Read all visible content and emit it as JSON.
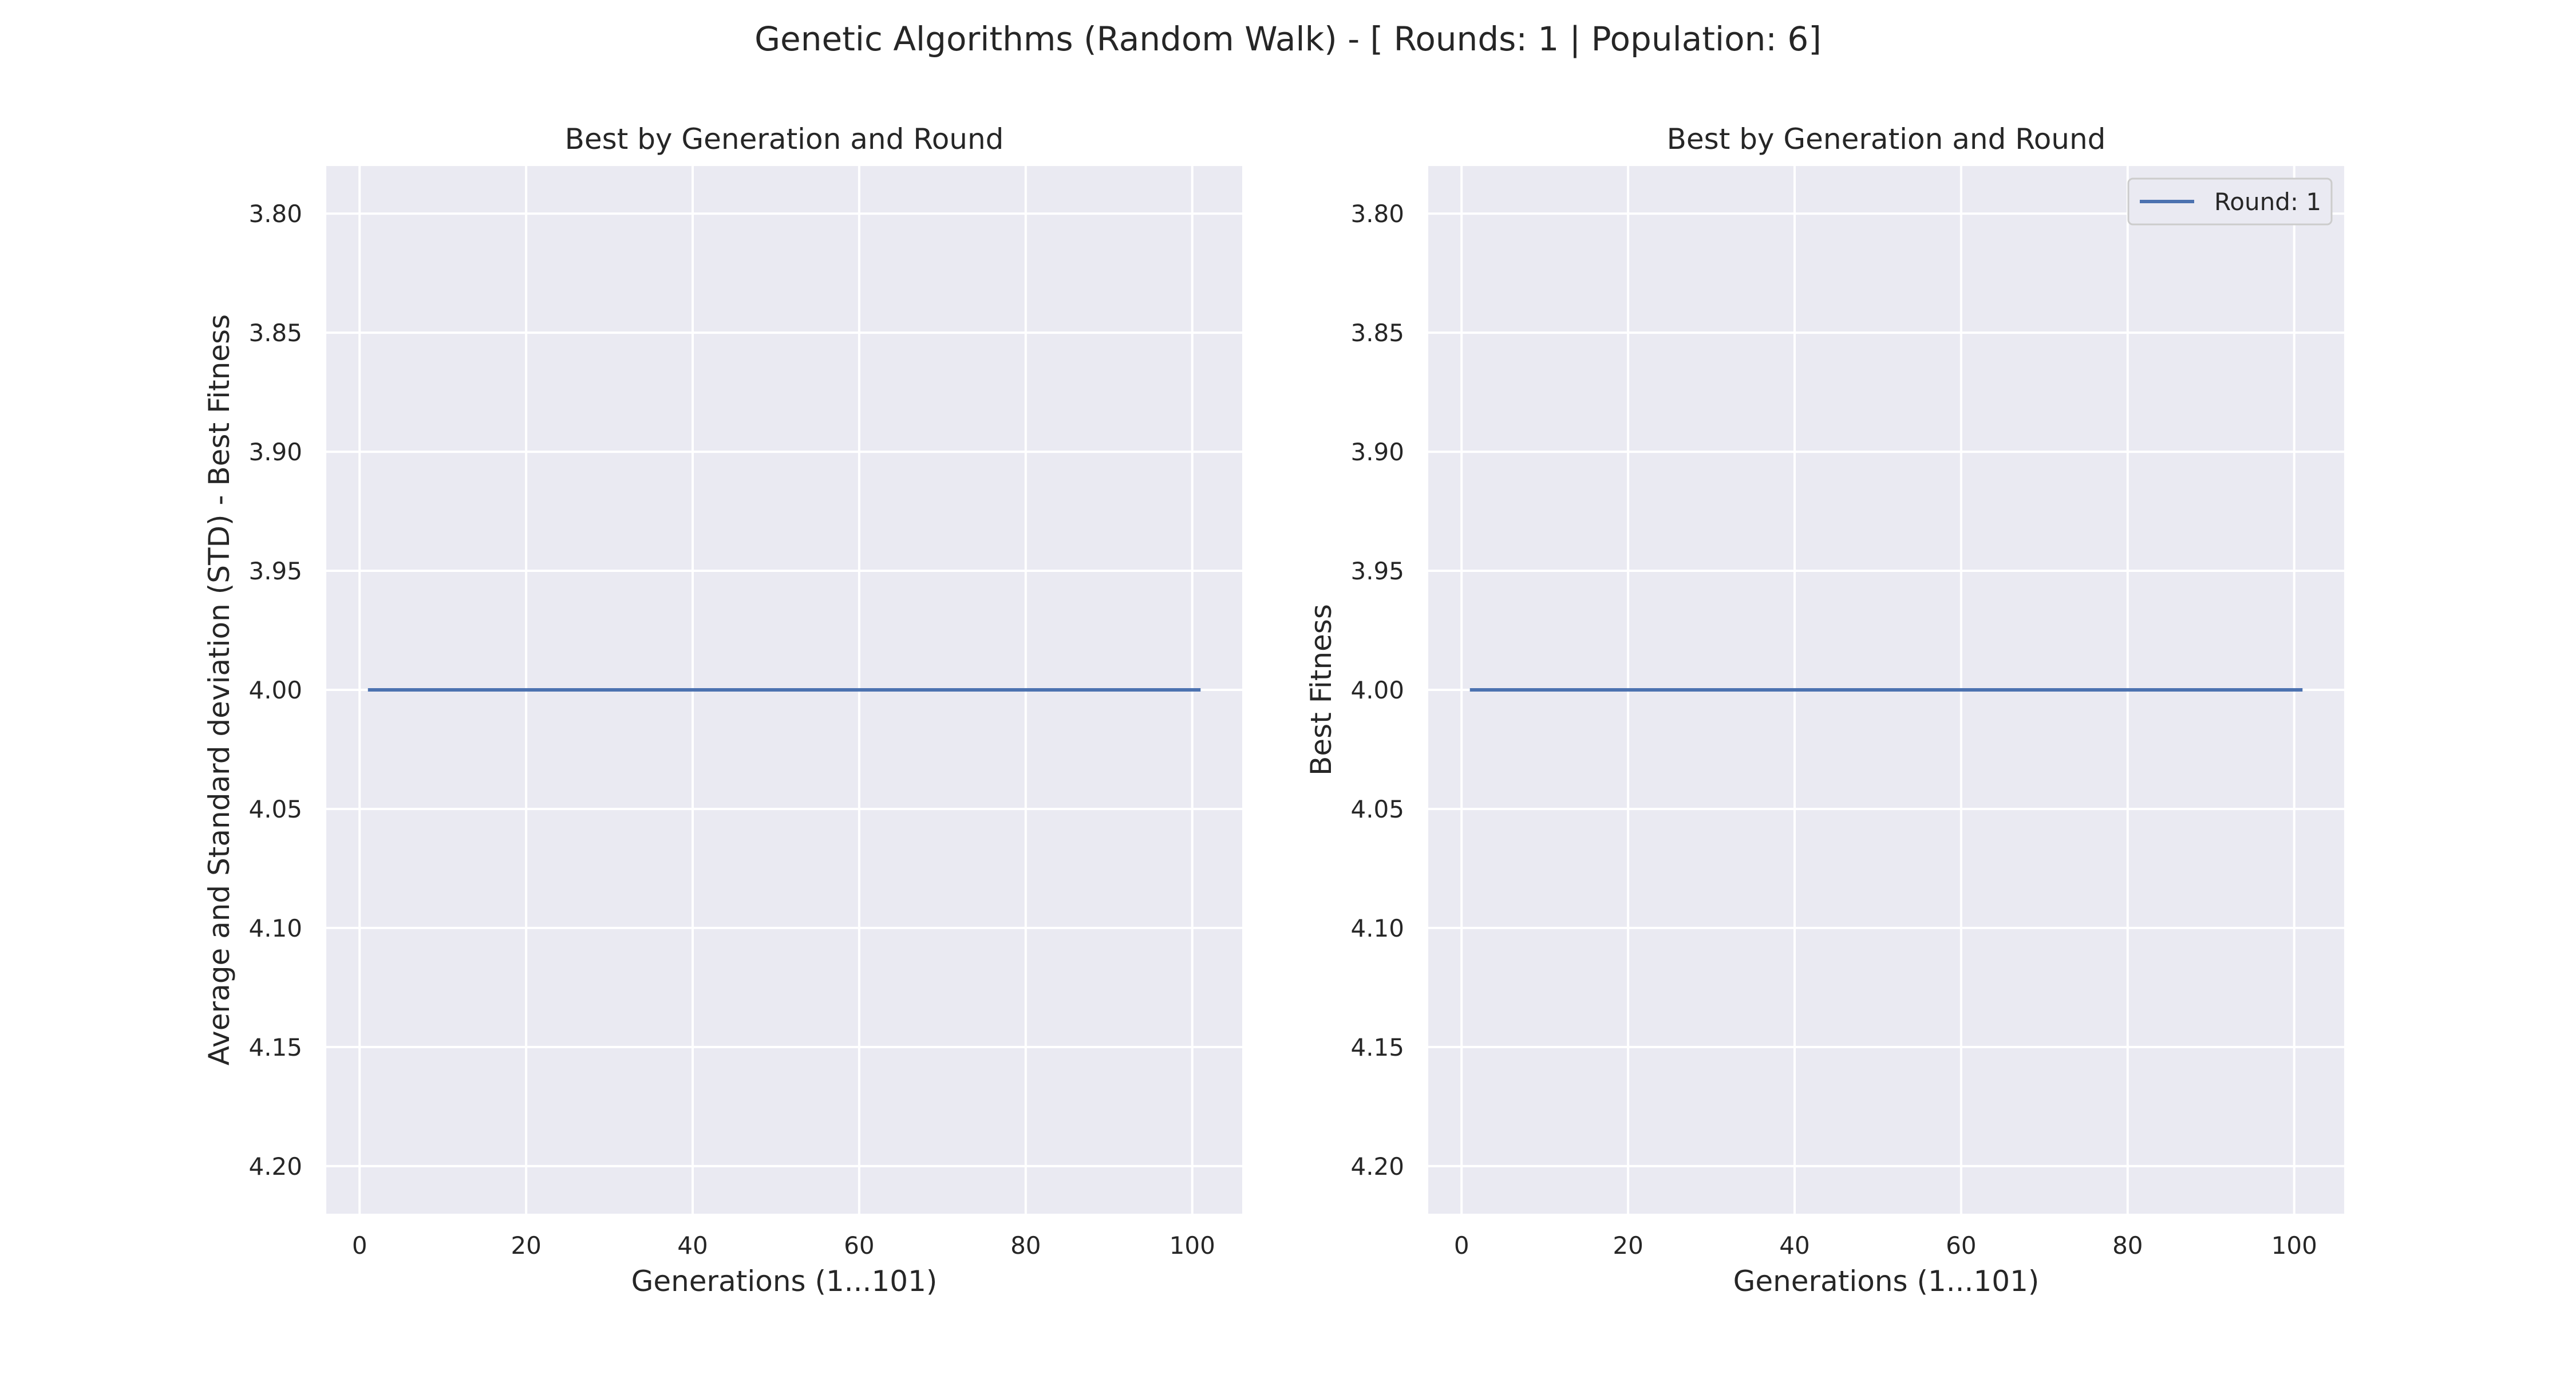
{
  "figure": {
    "suptitle": "Genetic Algorithms (Random Walk) - [ Rounds: 1 | Population: 6]"
  },
  "colors": {
    "axes_bg": "#EAEAF2",
    "grid": "#FFFFFF",
    "series": "#4C72B0",
    "text": "#262626"
  },
  "chart_data": [
    {
      "type": "line",
      "title": "Best by Generation and Round",
      "xlabel": "Generations (1...101)",
      "ylabel": "Average and Standard deviation (STD) - Best Fitness",
      "xlim": [
        -4,
        106
      ],
      "ylim": [
        4.22,
        3.78
      ],
      "y_inverted": true,
      "grid": true,
      "xticks": [
        0,
        20,
        40,
        60,
        80,
        100
      ],
      "xtick_labels": [
        "0",
        "20",
        "40",
        "60",
        "80",
        "100"
      ],
      "yticks": [
        3.8,
        3.85,
        3.9,
        3.95,
        4.0,
        4.05,
        4.1,
        4.15,
        4.2
      ],
      "ytick_labels": [
        "3.80",
        "3.85",
        "3.90",
        "3.95",
        "4.00",
        "4.05",
        "4.10",
        "4.15",
        "4.20"
      ],
      "legend": null,
      "series": [
        {
          "x": [
            1,
            101
          ],
          "y": [
            4.0,
            4.0
          ]
        }
      ]
    },
    {
      "type": "line",
      "title": "Best by Generation and Round",
      "xlabel": "Generations (1...101)",
      "ylabel": "Best Fitness",
      "xlim": [
        -4,
        106
      ],
      "ylim": [
        4.22,
        3.78
      ],
      "y_inverted": true,
      "grid": true,
      "xticks": [
        0,
        20,
        40,
        60,
        80,
        100
      ],
      "xtick_labels": [
        "0",
        "20",
        "40",
        "60",
        "80",
        "100"
      ],
      "yticks": [
        3.8,
        3.85,
        3.9,
        3.95,
        4.0,
        4.05,
        4.1,
        4.15,
        4.2
      ],
      "ytick_labels": [
        "3.80",
        "3.85",
        "3.90",
        "3.95",
        "4.00",
        "4.05",
        "4.10",
        "4.15",
        "4.20"
      ],
      "legend": "top-right",
      "series": [
        {
          "name": "Round: 1",
          "x": [
            1,
            101
          ],
          "y": [
            4.0,
            4.0
          ]
        }
      ]
    }
  ]
}
